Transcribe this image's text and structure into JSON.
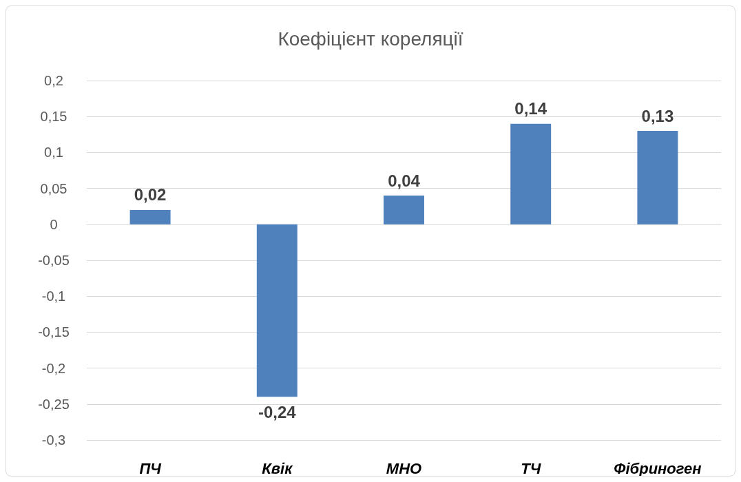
{
  "chart_data": {
    "type": "bar",
    "title": "Коефіцієнт кореляції",
    "categories": [
      "ПЧ",
      "Квік",
      "МНО",
      "ТЧ",
      "Фібриноген"
    ],
    "values": [
      0.02,
      -0.24,
      0.04,
      0.14,
      0.13
    ],
    "value_labels": [
      "0,02",
      "-0,24",
      "0,04",
      "0,14",
      "0,13"
    ],
    "color": "#4f81bd",
    "ylim": [
      -0.3,
      0.2
    ],
    "yticks": [
      {
        "value": -0.3,
        "label": "-0,3"
      },
      {
        "value": -0.25,
        "label": "-0,25"
      },
      {
        "value": -0.2,
        "label": "-0,2"
      },
      {
        "value": -0.15,
        "label": "-0,15"
      },
      {
        "value": -0.1,
        "label": "-0,1"
      },
      {
        "value": -0.05,
        "label": "-0,05"
      },
      0,
      {
        "value": 0.05,
        "label": "0,05"
      },
      {
        "value": 0.1,
        "label": "0,1"
      },
      {
        "value": 0.15,
        "label": "0,15"
      },
      {
        "value": 0.2,
        "label": "0,2"
      }
    ],
    "grid": "y"
  }
}
